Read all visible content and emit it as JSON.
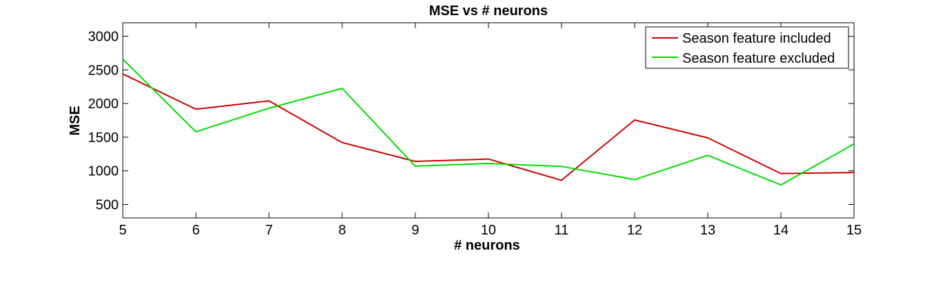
{
  "chart_data": {
    "type": "line",
    "title": "MSE vs # neurons",
    "xlabel": "# neurons",
    "ylabel": "MSE",
    "xlim": [
      5,
      15
    ],
    "ylim": [
      300,
      3200
    ],
    "x_ticks": [
      5,
      6,
      7,
      8,
      9,
      10,
      11,
      12,
      13,
      14,
      15
    ],
    "y_ticks": [
      500,
      1000,
      1500,
      2000,
      2500,
      3000
    ],
    "grid": false,
    "legend_position": "top-right",
    "x": [
      5,
      6,
      7,
      8,
      9,
      10,
      11,
      12,
      13,
      14,
      15
    ],
    "series": [
      {
        "name": "Season feature included",
        "color": "#cc0000",
        "values": [
          2440,
          1915,
          2040,
          1420,
          1140,
          1175,
          860,
          1755,
          1490,
          960,
          975
        ]
      },
      {
        "name": "Season feature excluded",
        "color": "#00dd00",
        "values": [
          2660,
          1580,
          1930,
          2225,
          1070,
          1110,
          1065,
          870,
          1230,
          790,
          1400
        ]
      }
    ]
  }
}
